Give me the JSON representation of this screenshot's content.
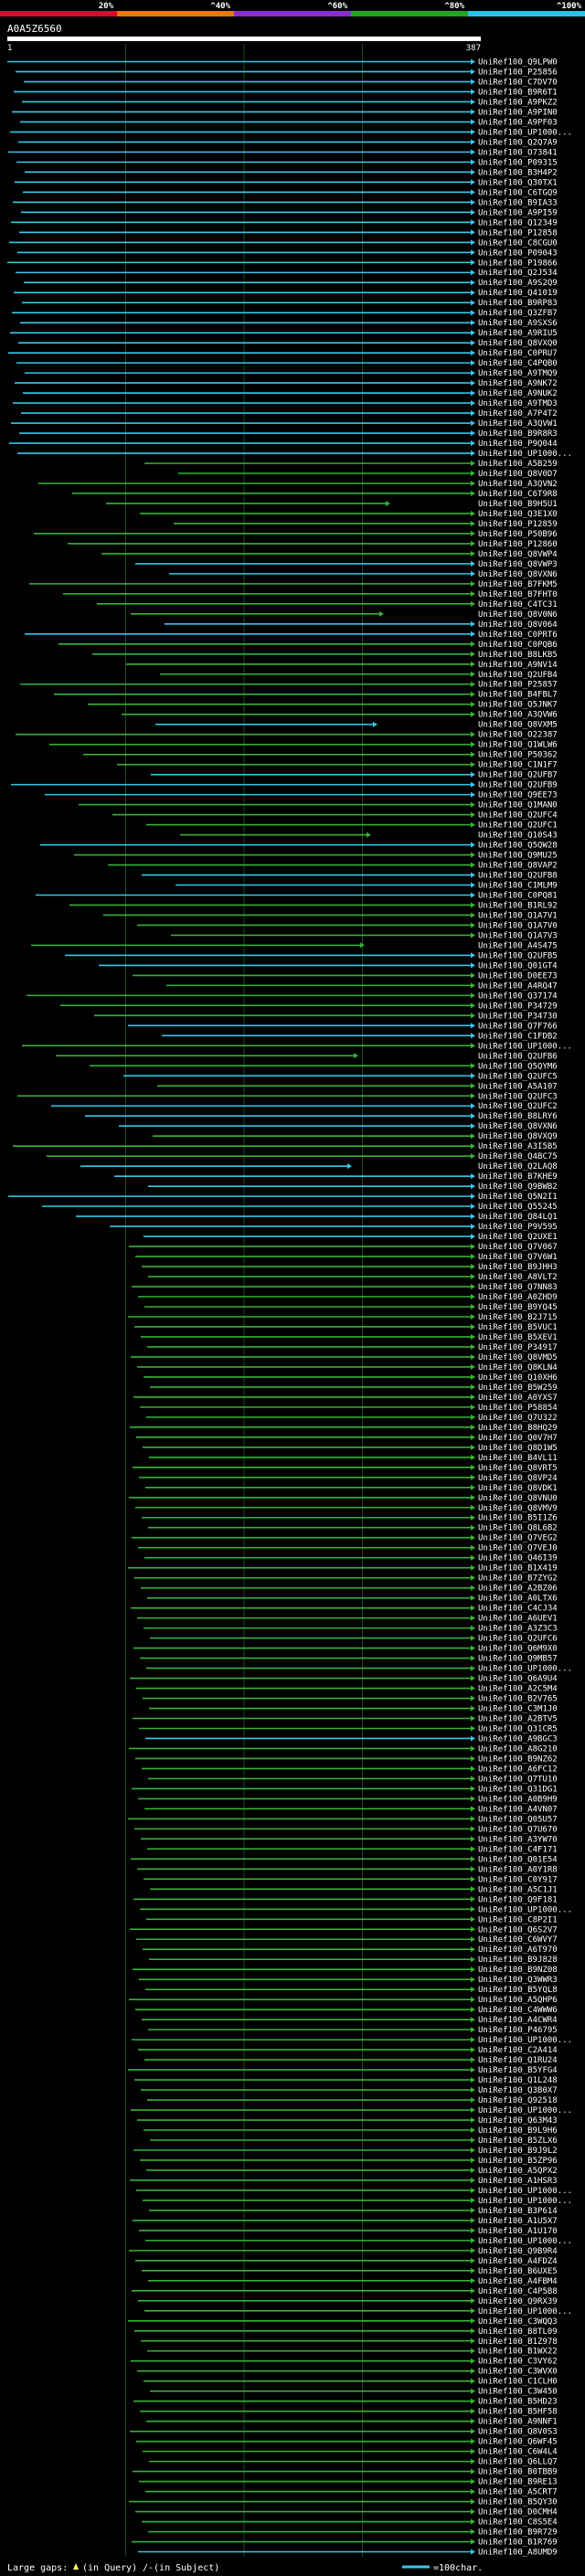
{
  "chart_data": {
    "type": "alignment",
    "query_id": "A0A5Z6560",
    "query_start": "1",
    "query_end": "387",
    "identity_legend": [
      {
        "label": "20%",
        "color": "#e8002c"
      },
      {
        "label": "^40%",
        "color": "#e87a00"
      },
      {
        "label": "^60%",
        "color": "#8a2bd6"
      },
      {
        "label": "^80%",
        "color": "#1fa81f"
      },
      {
        "label": "^100%",
        "color": "#22c4e8"
      }
    ],
    "colors": {
      "cyan": "#33c8ea",
      "green": "#36b336",
      "grid": "#1f4a1f",
      "mark": "#ffff66"
    },
    "footer": {
      "gaps_label": "Large gaps:",
      "query_gap": "(in Query)",
      "subject_gap": "/-(in Subject)",
      "scale_label": "=100char."
    },
    "hits": [
      "UniRef100_Q9LPW0",
      "UniRef100_P25856",
      "UniRef100_C7DV70",
      "UniRef100_B9R6T1",
      "UniRef100_A9PKZ2",
      "UniRef100_A9PIN0",
      "UniRef100_A9PF03",
      "UniRef100_UP1000...",
      "UniRef100_Q2Q7A9",
      "UniRef100_O73841",
      "UniRef100_P09315",
      "UniRef100_B3H4P2",
      "UniRef100_Q30TX1",
      "UniRef100_C6TGQ9",
      "UniRef100_B9IA33",
      "UniRef100_A9PI59",
      "UniRef100_Q12349",
      "UniRef100_P12858",
      "UniRef100_C8CGU0",
      "UniRef100_P09043",
      "UniRef100_P19866",
      "UniRef100_Q2J534",
      "UniRef100_A9S2Q9",
      "UniRef100_Q41019",
      "UniRef100_B9RP83",
      "UniRef100_Q3ZFB7",
      "UniRef100_A9SXS6",
      "UniRef100_A9RIU5",
      "UniRef100_Q8VXQ0",
      "UniRef100_C0PRU7",
      "UniRef100_C4PQB0",
      "UniRef100_A9TMQ9",
      "UniRef100_A9NK72",
      "UniRef100_A9NUK2",
      "UniRef100_A9TMD3",
      "UniRef100_A7P4T2",
      "UniRef100_A3QVW1",
      "UniRef100_B9R8R3",
      "UniRef100_P9Q044",
      "UniRef100_UP1000...",
      "UniRef100_A5B259",
      "UniRef100_Q8V0D7",
      "UniRef100_A3QVN2",
      "UniRef100_C6T9R8",
      "UniRef100_B9H5U1",
      "UniRef100_Q3E1X0",
      "UniRef100_P12859",
      "UniRef100_P50B96",
      "UniRef100_P12860",
      "UniRef100_Q8VWP4",
      "UniRef100_Q8VWP3",
      "UniRef100_Q8VXN6",
      "UniRef100_B7FKM5",
      "UniRef100_B7FHT0",
      "UniRef100_C4TC31",
      "UniRef100_Q8V0N6",
      "UniRef100_Q8V064",
      "UniRef100_C0PRT6",
      "UniRef100_C0PQB6",
      "UniRef100_B8LKB5",
      "UniRef100_A9NV14",
      "UniRef100_Q2UFB4",
      "UniRef100_P25857",
      "UniRef100_B4FBL7",
      "UniRef100_Q5JNK7",
      "UniRef100_A3QVW6",
      "UniRef100_Q8VXM5",
      "UniRef100_O22387",
      "UniRef100_Q1WLW6",
      "UniRef100_P50362",
      "UniRef100_C1N1F7",
      "UniRef100_Q2UFB7",
      "UniRef100_Q2UFB9",
      "UniRef100_Q9EE73",
      "UniRef100_Q1MAN0",
      "UniRef100_Q2UFC4",
      "UniRef100_Q2UFC1",
      "UniRef100_Q10S43",
      "UniRef100_Q5QW28",
      "UniRef100_Q9MU25",
      "UniRef100_Q8VAP2",
      "UniRef100_Q2UFB8",
      "UniRef100_C1MLM9",
      "UniRef100_C0PQ81",
      "UniRef100_B1RL92",
      "UniRef100_Q1A7V1",
      "UniRef100_Q1A7V0",
      "UniRef100_Q1A7V3",
      "UniRef100_A4S475",
      "UniRef100_Q2UFB5",
      "UniRef100_Q01GT4",
      "UniRef100_D0EE73",
      "UniRef100_A4RQ47",
      "UniRef100_Q37174",
      "UniRef100_P34729",
      "UniRef100_P34730",
      "UniRef100_Q7F766",
      "UniRef100_C1FDB2",
      "UniRef100_UP1000...",
      "UniRef100_Q2UFB6",
      "UniRef100_Q5QYM6",
      "UniRef100_Q2UFC5",
      "UniRef100_A5A107",
      "UniRef100_Q2UFC3",
      "UniRef100_Q2UFC2",
      "UniRef100_B8LRY6",
      "UniRef100_Q8VXN6",
      "UniRef100_Q8VXQ9",
      "UniRef100_A3I5B5",
      "UniRef100_Q4BC75",
      "UniRef100_Q2LAQ8",
      "UniRef100_B7KHE9",
      "UniRef100_Q9BWB2",
      "UniRef100_Q5N2I1",
      "UniRef100_Q55245",
      "UniRef100_Q84LQ1",
      "UniRef100_P9V595",
      "UniRef100_Q2UXE1",
      "UniRef100_Q7V067",
      "UniRef100_Q7V6W1",
      "UniRef100_B9JHH3",
      "UniRef100_A8VLT2",
      "UniRef100_Q7NN83",
      "UniRef100_A0ZHD9",
      "UniRef100_B9YQ45",
      "UniRef100_B2J715",
      "UniRef100_B5VUC1",
      "UniRef100_B5XEV1",
      "UniRef100_P34917",
      "UniRef100_Q8VMD5",
      "UniRef100_Q8KLN4",
      "UniRef100_Q10XH6",
      "UniRef100_B5W259",
      "UniRef100_A0YXS7",
      "UniRef100_P58854",
      "UniRef100_Q7U322",
      "UniRef100_B8HQ29",
      "UniRef100_Q0V7H7",
      "UniRef100_Q8D1W5",
      "UniRef100_B4VL11",
      "UniRef100_Q8VRT5",
      "UniRef100_Q8VP24",
      "UniRef100_Q8VDK1",
      "UniRef100_Q8VNU0",
      "UniRef100_Q8VMV9",
      "UniRef100_B5I1Z6",
      "UniRef100_Q8L6B2",
      "UniRef100_Q7VEG2",
      "UniRef100_Q7VEJ0",
      "UniRef100_Q46I39",
      "UniRef100_B1X419",
      "UniRef100_B7ZYG2",
      "UniRef100_A2BZ06",
      "UniRef100_A0LTX6",
      "UniRef100_C4CJ34",
      "UniRef100_A6UEV1",
      "UniRef100_A3Z3C3",
      "UniRef100_Q2UFC6",
      "UniRef100_Q6M9X0",
      "UniRef100_Q9MB57",
      "UniRef100_UP1000...",
      "UniRef100_Q6A9U4",
      "UniRef100_A2C5M4",
      "UniRef100_B2V765",
      "UniRef100_C3M1J0",
      "UniRef100_A2BTV5",
      "UniRef100_Q31CR5",
      "UniRef100_A9BGC3",
      "UniRef100_A8G210",
      "UniRef100_B9NZ62",
      "UniRef100_A6FC12",
      "UniRef100_Q7TU10",
      "UniRef100_Q31DG1",
      "UniRef100_A0B9H9",
      "UniRef100_A4VN07",
      "UniRef100_Q05U57",
      "UniRef100_Q7U670",
      "UniRef100_A3YW70",
      "UniRef100_C4F171",
      "UniRef100_Q01E54",
      "UniRef100_A0Y1R8",
      "UniRef100_C0Y917",
      "UniRef100_A5C1J1",
      "UniRef100_Q9F181",
      "UniRef100_UP1000...",
      "UniRef100_C8P2I1",
      "UniRef100_Q6S2V7",
      "UniRef100_C6WVY7",
      "UniRef100_A6T970",
      "UniRef100_B9J828",
      "UniRef100_B9NZ08",
      "UniRef100_Q3WWR3",
      "UniRef100_B5YQL8",
      "UniRef100_A5QHP6",
      "UniRef100_C4WWW6",
      "UniRef100_A4CWR4",
      "UniRef100_P46795",
      "UniRef100_UP1000...",
      "UniRef100_C2A414",
      "UniRef100_Q1RU24",
      "UniRef100_B5YFG4",
      "UniRef100_Q1L248",
      "UniRef100_Q3B0X7",
      "UniRef100_Q92518",
      "UniRef100_UP1000...",
      "UniRef100_Q63M43",
      "UniRef100_B9L9H6",
      "UniRef100_B5ZLX6",
      "UniRef100_B9J9L2",
      "UniRef100_B5ZP96",
      "UniRef100_A5QPX2",
      "UniRef100_A1HSR3",
      "UniRef100_UP1000...",
      "UniRef100_UP1000...",
      "UniRef100_B3P614",
      "UniRef100_A1U5X7",
      "UniRef100_A1U170",
      "UniRef100_UP1000...",
      "UniRef100_Q9B9R4",
      "UniRef100_A4FDZ4",
      "UniRef100_B6UXE5",
      "UniRef100_A4FBM4",
      "UniRef100_C4P5B8",
      "UniRef100_Q9RX39",
      "UniRef100_UP1000...",
      "UniRef100_C3WQQ3",
      "UniRef100_B8TL09",
      "UniRef100_B1Z978",
      "UniRef100_B1WX22",
      "UniRef100_C3VY62",
      "UniRef100_C3WVX0",
      "UniRef100_C1CLH0",
      "UniRef100_C3W450",
      "UniRef100_B5HD23",
      "UniRef100_B5HF58",
      "UniRef100_A9NNF1",
      "UniRef100_Q8V0S3",
      "UniRef100_Q6WF45",
      "UniRef100_C6W4L4",
      "UniRef100_Q6LLQ7",
      "UniRef100_B0TBB9",
      "UniRef100_B9RE13",
      "UniRef100_A5CRT7",
      "UniRef100_B5QY30",
      "UniRef100_D0CMH4",
      "UniRef100_C8S5E4",
      "UniRef100_B9R729",
      "UniRef100_B1R769",
      "UniRef100_A8UMD9"
    ]
  }
}
